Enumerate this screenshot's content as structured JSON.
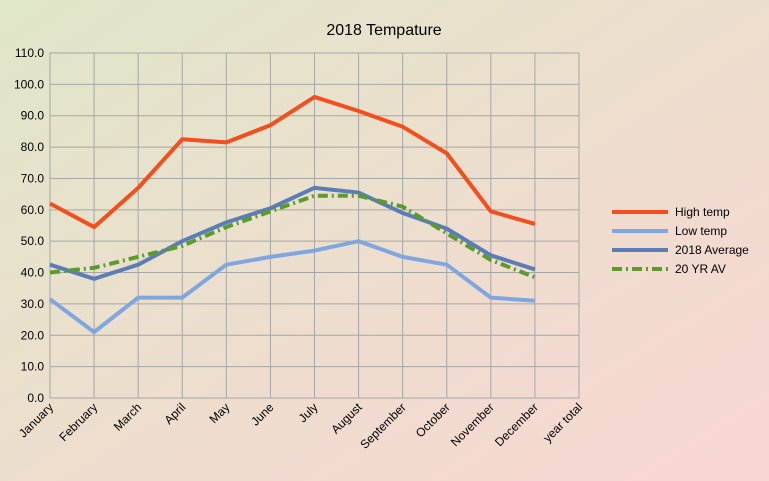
{
  "chart_data": {
    "type": "line",
    "title": "2018 Tempature",
    "categories": [
      "January",
      "February",
      "March",
      "April",
      "May",
      "June",
      "July",
      "August",
      "September",
      "October",
      "November",
      "December",
      "year total"
    ],
    "series": [
      {
        "name": "High temp",
        "color": "#f24e1e",
        "dash": "solid",
        "values": [
          62,
          54.5,
          67,
          82.5,
          81.5,
          87,
          96,
          91.5,
          86.5,
          78,
          59.5,
          55.5,
          null
        ]
      },
      {
        "name": "Low temp",
        "color": "#7fa6de",
        "dash": "solid",
        "values": [
          31.5,
          21,
          32,
          32,
          42.5,
          45,
          47,
          50,
          45,
          42.5,
          32,
          31,
          null
        ]
      },
      {
        "name": "2018 Average",
        "color": "#5a7db5",
        "dash": "solid",
        "values": [
          42.5,
          38,
          42.5,
          50,
          56,
          60.5,
          67,
          65.5,
          59,
          54,
          45.5,
          41,
          null
        ]
      },
      {
        "name": "20 YR AV",
        "color": "#5c9a2c",
        "dash": "dashdot",
        "values": [
          40,
          41.5,
          45,
          48.5,
          54.5,
          59.5,
          64.5,
          64.5,
          61,
          52.5,
          44,
          38.5,
          null
        ]
      }
    ],
    "ylim": [
      0,
      110
    ],
    "yticks": [
      {
        "value": 0,
        "label": "0.0"
      },
      {
        "value": 10,
        "label": "10.0"
      },
      {
        "value": 20,
        "label": "20.0"
      },
      {
        "value": 30,
        "label": "30.0"
      },
      {
        "value": 40,
        "label": "40.0"
      },
      {
        "value": 50,
        "label": "50.0"
      },
      {
        "value": 60,
        "label": "60.0"
      },
      {
        "value": 70,
        "label": "70.0"
      },
      {
        "value": 80,
        "label": "80.0"
      },
      {
        "value": 90,
        "label": "90.0"
      },
      {
        "value": 100,
        "label": "100.0"
      },
      {
        "value": 110,
        "label": "110.0"
      }
    ],
    "grid": true,
    "legend": "right"
  }
}
